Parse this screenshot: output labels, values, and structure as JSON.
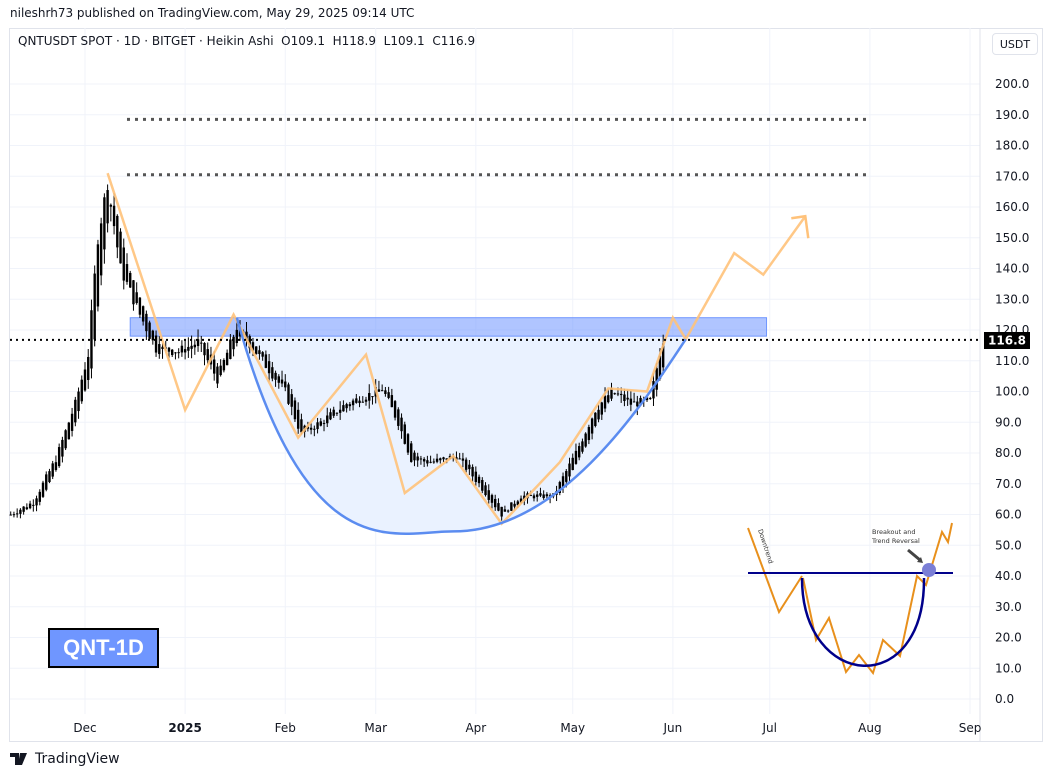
{
  "header": {
    "published": "nileshrh73 published on TradingView.com, May 29, 2025 09:14 UTC"
  },
  "legend": {
    "symbol": "QNTUSDT SPOT · 1D · BITGET · Heikin Ashi",
    "open": "O109.1",
    "high": "H118.9",
    "low": "L109.1",
    "close": "C116.9"
  },
  "currency_button": "USDT",
  "badge": "QNT-1D",
  "footer": {
    "logo_text": "TradingView"
  },
  "colors": {
    "candles": "#000000",
    "zone": "#6f96ff",
    "projection": "#ffc27a",
    "cup_curve": "#5b8cf0",
    "cup_fill": "#eaf2ff",
    "price_label": "#000000"
  },
  "chart_data": {
    "type": "candlestick",
    "style": "Heikin Ashi",
    "ylim": [
      -5,
      210
    ],
    "yticks": [
      "0.0",
      "10.0",
      "20.0",
      "30.0",
      "40.0",
      "50.0",
      "60.0",
      "70.0",
      "80.0",
      "90.0",
      "100.0",
      "110.0",
      "120.0",
      "130.0",
      "140.0",
      "150.0",
      "160.0",
      "170.0",
      "180.0",
      "190.0",
      "200.0"
    ],
    "xticks": [
      {
        "date": "2024-12-01",
        "label": "Dec"
      },
      {
        "date": "2025-01-01",
        "label": "2025"
      },
      {
        "date": "2025-02-01",
        "label": "Feb"
      },
      {
        "date": "2025-03-01",
        "label": "Mar"
      },
      {
        "date": "2025-04-01",
        "label": "Apr"
      },
      {
        "date": "2025-05-01",
        "label": "May"
      },
      {
        "date": "2025-06-01",
        "label": "Jun"
      },
      {
        "date": "2025-07-01",
        "label": "Jul"
      },
      {
        "date": "2025-08-01",
        "label": "Aug"
      },
      {
        "date": "2025-09-01",
        "label": "Sep"
      }
    ],
    "grid": true,
    "price_path": [
      [
        "2024-11-08",
        60
      ],
      [
        "2024-11-15",
        64
      ],
      [
        "2024-11-22",
        78
      ],
      [
        "2024-11-28",
        96
      ],
      [
        "2024-12-02",
        112
      ],
      [
        "2024-12-05",
        150
      ],
      [
        "2024-12-08",
        168
      ],
      [
        "2024-12-12",
        140
      ],
      [
        "2024-12-18",
        125
      ],
      [
        "2024-12-23",
        114
      ],
      [
        "2024-12-30",
        113
      ],
      [
        "2025-01-05",
        116
      ],
      [
        "2025-01-11",
        104
      ],
      [
        "2025-01-17",
        121
      ],
      [
        "2025-01-25",
        110
      ],
      [
        "2025-02-01",
        100
      ],
      [
        "2025-02-06",
        86
      ],
      [
        "2025-02-12",
        90
      ],
      [
        "2025-02-20",
        96
      ],
      [
        "2025-02-27",
        99
      ],
      [
        "2025-03-03",
        101
      ],
      [
        "2025-03-08",
        90
      ],
      [
        "2025-03-12",
        78
      ],
      [
        "2025-03-18",
        77
      ],
      [
        "2025-03-26",
        79
      ],
      [
        "2025-04-02",
        70
      ],
      [
        "2025-04-09",
        60
      ],
      [
        "2025-04-15",
        66
      ],
      [
        "2025-04-25",
        66
      ],
      [
        "2025-05-02",
        80
      ],
      [
        "2025-05-08",
        94
      ],
      [
        "2025-05-13",
        100
      ],
      [
        "2025-05-19",
        96
      ],
      [
        "2025-05-25",
        97
      ],
      [
        "2025-05-28",
        113
      ],
      [
        "2025-05-29",
        116.9
      ]
    ],
    "last_price": "116.8",
    "resistance_zone": {
      "from": "2024-12-15",
      "to": "2025-06-30",
      "low": 118,
      "high": 124
    },
    "target_lines": [
      {
        "price": 170.5,
        "from": "2024-12-14",
        "to": "2025-08-01"
      },
      {
        "price": 188.5,
        "from": "2024-12-14",
        "to": "2025-08-01"
      }
    ],
    "projection_path": [
      [
        "2024-12-08",
        171
      ],
      [
        "2025-01-01",
        94
      ],
      [
        "2025-01-16",
        125
      ],
      [
        "2025-02-05",
        85
      ],
      [
        "2025-02-26",
        112
      ],
      [
        "2025-03-10",
        67
      ],
      [
        "2025-03-25",
        79
      ],
      [
        "2025-04-09",
        57
      ],
      [
        "2025-04-27",
        77
      ],
      [
        "2025-05-12",
        101
      ],
      [
        "2025-05-24",
        100
      ],
      [
        "2025-06-01",
        124
      ],
      [
        "2025-06-05",
        117
      ],
      [
        "2025-06-20",
        145
      ],
      [
        "2025-06-29",
        138
      ],
      [
        "2025-07-12",
        157
      ]
    ],
    "cup_curve": {
      "start": [
        "2025-01-17",
        124
      ],
      "bottom": [
        "2025-03-25",
        54.5
      ],
      "end": [
        "2025-06-05",
        117
      ]
    },
    "inset": {
      "label_downtrend": "Downtrend",
      "label_breakout": "Breakout and",
      "label_reversal": "Trend Reversal"
    }
  }
}
